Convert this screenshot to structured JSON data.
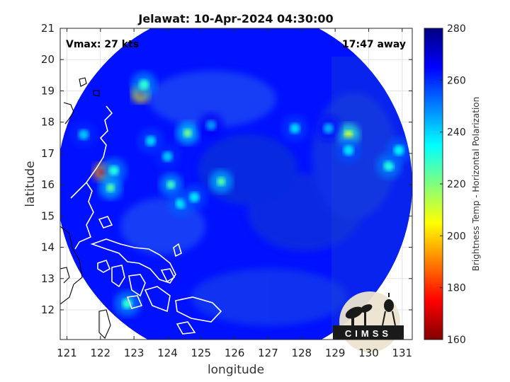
{
  "chart_data": {
    "type": "heatmap",
    "title": "Jelawat: 10-Apr-2024 04:30:00",
    "xlabel": "longitude",
    "ylabel": "latitude",
    "xlim": [
      120.8,
      131.3
    ],
    "ylim": [
      11.05,
      21
    ],
    "xticks": [
      121,
      122,
      123,
      124,
      125,
      126,
      127,
      128,
      129,
      130,
      131
    ],
    "yticks": [
      12,
      13,
      14,
      15,
      16,
      17,
      18,
      19,
      20,
      21
    ],
    "grid": true,
    "annotations": {
      "vmax": "Vmax: 27 kts",
      "time_away": "17:47 away"
    },
    "colorbar": {
      "label": "Brightness Temp - Horizontal Polarization",
      "range": [
        160,
        280
      ],
      "ticks": [
        160,
        180,
        200,
        220,
        240,
        260,
        280
      ],
      "colormap": "jet",
      "stops": [
        "#800000",
        "#ff0000",
        "#ffff00",
        "#80ff80",
        "#00ffff",
        "#0080ff",
        "#0000ff",
        "#000080"
      ]
    },
    "swath": {
      "center_lon": 126.0,
      "center_lat": 16.0,
      "radius_deg": 5.3,
      "background_tb": 263
    },
    "cold_features": [
      {
        "lon": 122.05,
        "lat": 16.4,
        "tb": 175
      },
      {
        "lon": 122.4,
        "lat": 16.45,
        "tb": 232
      },
      {
        "lon": 122.3,
        "lat": 15.9,
        "tb": 225
      },
      {
        "lon": 123.2,
        "lat": 18.9,
        "tb": 185
      },
      {
        "lon": 123.3,
        "lat": 19.2,
        "tb": 230
      },
      {
        "lon": 124.6,
        "lat": 17.65,
        "tb": 222
      },
      {
        "lon": 123.5,
        "lat": 17.4,
        "tb": 240
      },
      {
        "lon": 124.0,
        "lat": 16.9,
        "tb": 242
      },
      {
        "lon": 124.1,
        "lat": 16.0,
        "tb": 228
      },
      {
        "lon": 124.4,
        "lat": 15.4,
        "tb": 236
      },
      {
        "lon": 124.8,
        "lat": 15.6,
        "tb": 238
      },
      {
        "lon": 125.6,
        "lat": 16.1,
        "tb": 225
      },
      {
        "lon": 129.4,
        "lat": 17.6,
        "tb": 212
      },
      {
        "lon": 129.4,
        "lat": 17.1,
        "tb": 238
      },
      {
        "lon": 130.6,
        "lat": 16.6,
        "tb": 232
      },
      {
        "lon": 130.9,
        "lat": 17.1,
        "tb": 236
      },
      {
        "lon": 127.8,
        "lat": 17.8,
        "tb": 240
      },
      {
        "lon": 128.8,
        "lat": 17.8,
        "tb": 245
      },
      {
        "lon": 121.5,
        "lat": 17.6,
        "tb": 242
      },
      {
        "lon": 122.8,
        "lat": 12.2,
        "tb": 230
      },
      {
        "lon": 125.3,
        "lat": 17.9,
        "tb": 248
      }
    ],
    "logo": "CIMSS"
  }
}
